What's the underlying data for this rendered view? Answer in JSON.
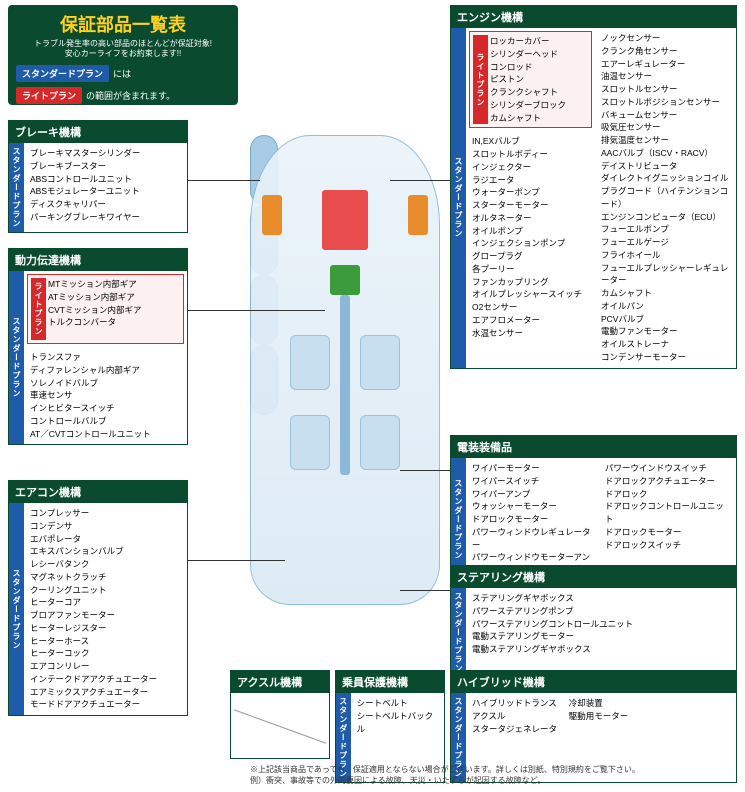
{
  "header": {
    "title": "保証部品一覧表",
    "sub1": "トラブル発生率の高い部品のほとんどが保証対象!",
    "sub2": "安心カーライフをお約束します!!",
    "std_label": "スタンダードプラン",
    "std_suffix": "には",
    "light_label": "ライトプラン",
    "light_suffix": "の範囲が含まれます。"
  },
  "colors": {
    "green": "#0a4a2e",
    "blue": "#1e5ba8",
    "red": "#d62828",
    "yellow": "#ffd020",
    "light_red_bg": "#fdf0f0"
  },
  "vtab": {
    "std": "スタンダードプラン",
    "light": "ライトプラン"
  },
  "brake": {
    "title": "ブレーキ機構",
    "items": [
      "ブレーキマスターシリンダー",
      "ブレーキブースター",
      "ABSコントロールユニット",
      "ABSモジュレーターユニット",
      "ディスクキャリパー",
      "パーキングブレーキワイヤー"
    ]
  },
  "powertrain": {
    "title": "動力伝達機構",
    "light_items": [
      "MTミッション内部ギア",
      "ATミッション内部ギア",
      "CVTミッション内部ギア",
      "トルクコンバータ"
    ],
    "std_items": [
      "トランスファ",
      "ディファレンシャル内部ギア",
      "ソレノイドバルブ",
      "車速センサ",
      "インヒビタースイッチ",
      "コントロールバルブ",
      "AT／CVTコントロールユニット"
    ]
  },
  "aircon": {
    "title": "エアコン機構",
    "items": [
      "コンプレッサー",
      "コンデンサ",
      "エバポレータ",
      "エキスパンションバルブ",
      "レシーバタンク",
      "マグネットクラッチ",
      "クーリングユニット",
      "ヒーターコア",
      "ブロアファンモーター",
      "ヒーターレジスター",
      "ヒーターホース",
      "ヒーターコック",
      "エアコンリレー",
      "インテークドアアクチュエーター",
      "エアミックスアクチュエーター",
      "モードドアアクチュエーター"
    ]
  },
  "engine": {
    "title": "エンジン機構",
    "light_items": [
      "ロッカーカバー",
      "シリンダーヘッド",
      "コンロッド",
      "ピストン",
      "クランクシャフト",
      "シリンダーブロック",
      "カムシャフト"
    ],
    "std_col1": [
      "IN,EXバルブ",
      "スロットルボディー",
      "インジェクター",
      "ラジエータ",
      "ウォーターポンプ",
      "スターターモーター",
      "オルタネーター",
      "オイルポンプ",
      "インジェクションポンプ",
      "グロープラグ",
      "各プーリー",
      "ファンカップリング",
      "オイルプレッシャースイッチ",
      "O2センサー",
      "エアフロメーター",
      "水温センサー"
    ],
    "std_col2": [
      "ノックセンサー",
      "クランク角センサー",
      "エアーレギュレーター",
      "油温センサー",
      "スロットルセンサー",
      "スロットルポジションセンサー",
      "バキュームセンサー",
      "吸気圧センサー",
      "排気温度センサー",
      "AACバルブ（ISCV・RACV）",
      "デイストリビュータ",
      "ダイレクトイグニッションコイル",
      "プラグコード（ハイテンションコード）",
      "エンジンコンピュータ（ECU）",
      "フューエルポンプ",
      "フューエルゲージ",
      "フライホイール",
      "フューエルプレッシャーレギュレーター",
      "カムシャフト",
      "オイルパン",
      "PCVバルブ",
      "電動ファンモーター",
      "オイルストレーナ",
      "コンデンサーモーター"
    ]
  },
  "electrical": {
    "title": "電装装備品",
    "col1": [
      "ワイパーモーター",
      "ワイパースイッチ",
      "ワイパーアンプ",
      "ウォッシャーモーター",
      "ドアロックモーター",
      "パワーウィンドウレギュレーター",
      "パワーウィンドウモーターアンプ"
    ],
    "col2": [
      "パワーウインドウスイッチ",
      "ドアロックアクチュエーター",
      "ドアロック",
      "ドアロックコントロールユニット",
      "ドアロックモーター",
      "ドアロックスイッチ"
    ]
  },
  "steering": {
    "title": "ステアリング機構",
    "items": [
      "ステアリングギヤボックス",
      "パワーステアリングポンプ",
      "パワーステアリングコントロールユニット",
      "電動ステアリングモーター",
      "電動ステアリングギヤボックス"
    ]
  },
  "axle": {
    "title": "アクスル機構"
  },
  "occupant": {
    "title": "乗員保護機構",
    "items": [
      "シートベルト",
      "シートベルトバックル"
    ]
  },
  "hybrid": {
    "title": "ハイブリッド機構",
    "col1": [
      "ハイブリッドトランスアクスル",
      "スタータジェネレータ"
    ],
    "col2": [
      "冷却装置",
      "駆動用モーター"
    ]
  },
  "footnote": {
    "l1": "※上記該当商品であっても、保証適用とならない場合がございます。詳しくは別紙、特別規約をご覧下さい。",
    "l2": "例）衝突、事故等での外的要因による故障、天災・いたずらが起因する故障など。"
  }
}
